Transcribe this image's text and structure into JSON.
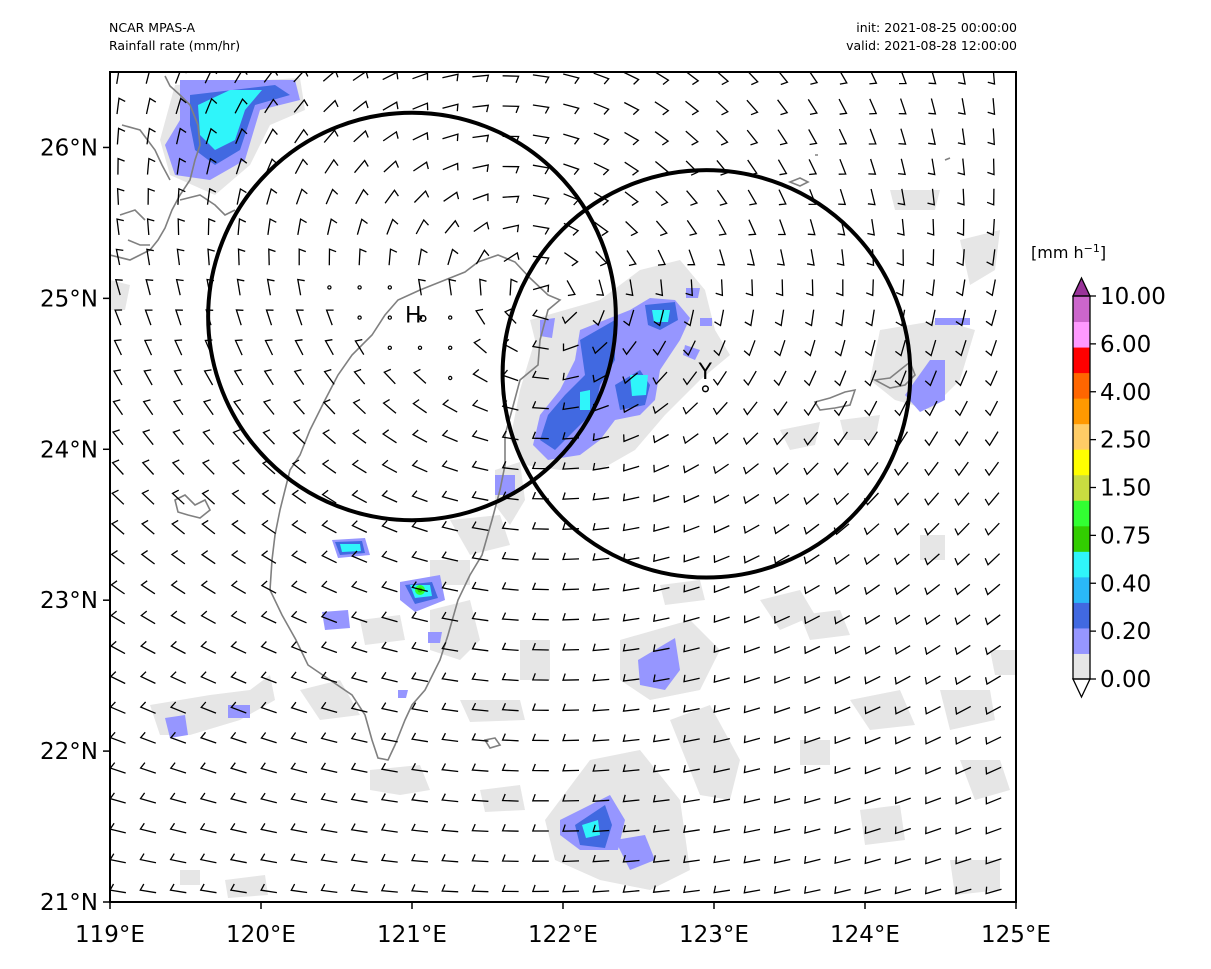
{
  "header": {
    "model": "NCAR MPAS-A",
    "field": "Rainfall rate (mm/hr)",
    "init": "init: 2021-08-25 00:00:00",
    "valid": "valid: 2021-08-28 12:00:00"
  },
  "map": {
    "projection": "PlateCarree",
    "lon_range": [
      119,
      125
    ],
    "lat_range": [
      21,
      26.5
    ],
    "lon_ticks": [
      "119°E",
      "120°E",
      "121°E",
      "122°E",
      "123°E",
      "124°E",
      "125°E"
    ],
    "lat_ticks": [
      "21°N",
      "22°N",
      "23°N",
      "24°N",
      "25°N",
      "26°N"
    ],
    "coastline_color": "#808080",
    "wind_barb_color": "#000000"
  },
  "centers": [
    {
      "label": "H",
      "lon": 121.0,
      "lat": 24.88,
      "circle_radius_deg": 1.35
    },
    {
      "label": "Y",
      "lon": 122.95,
      "lat": 24.5,
      "circle_radius_deg": 1.35
    }
  ],
  "colorbar": {
    "unit": "[mm h",
    "unit_sup": "−1",
    "unit_close": "]",
    "extend": "both",
    "labels": [
      "10.00",
      "6.00",
      "4.00",
      "2.50",
      "1.50",
      "0.75",
      "0.40",
      "0.20",
      "0.00"
    ],
    "colors": [
      "#ffffff",
      "#e6e6e6",
      "#9696ff",
      "#4169e1",
      "#2ab8f8",
      "#2ff5fa",
      "#32cd00",
      "#32ff32",
      "#c8dc40",
      "#ffff00",
      "#ffcc66",
      "#ff9900",
      "#ff6600",
      "#ff0000",
      "#ff99ff",
      "#cc66cc",
      "#993399"
    ]
  }
}
